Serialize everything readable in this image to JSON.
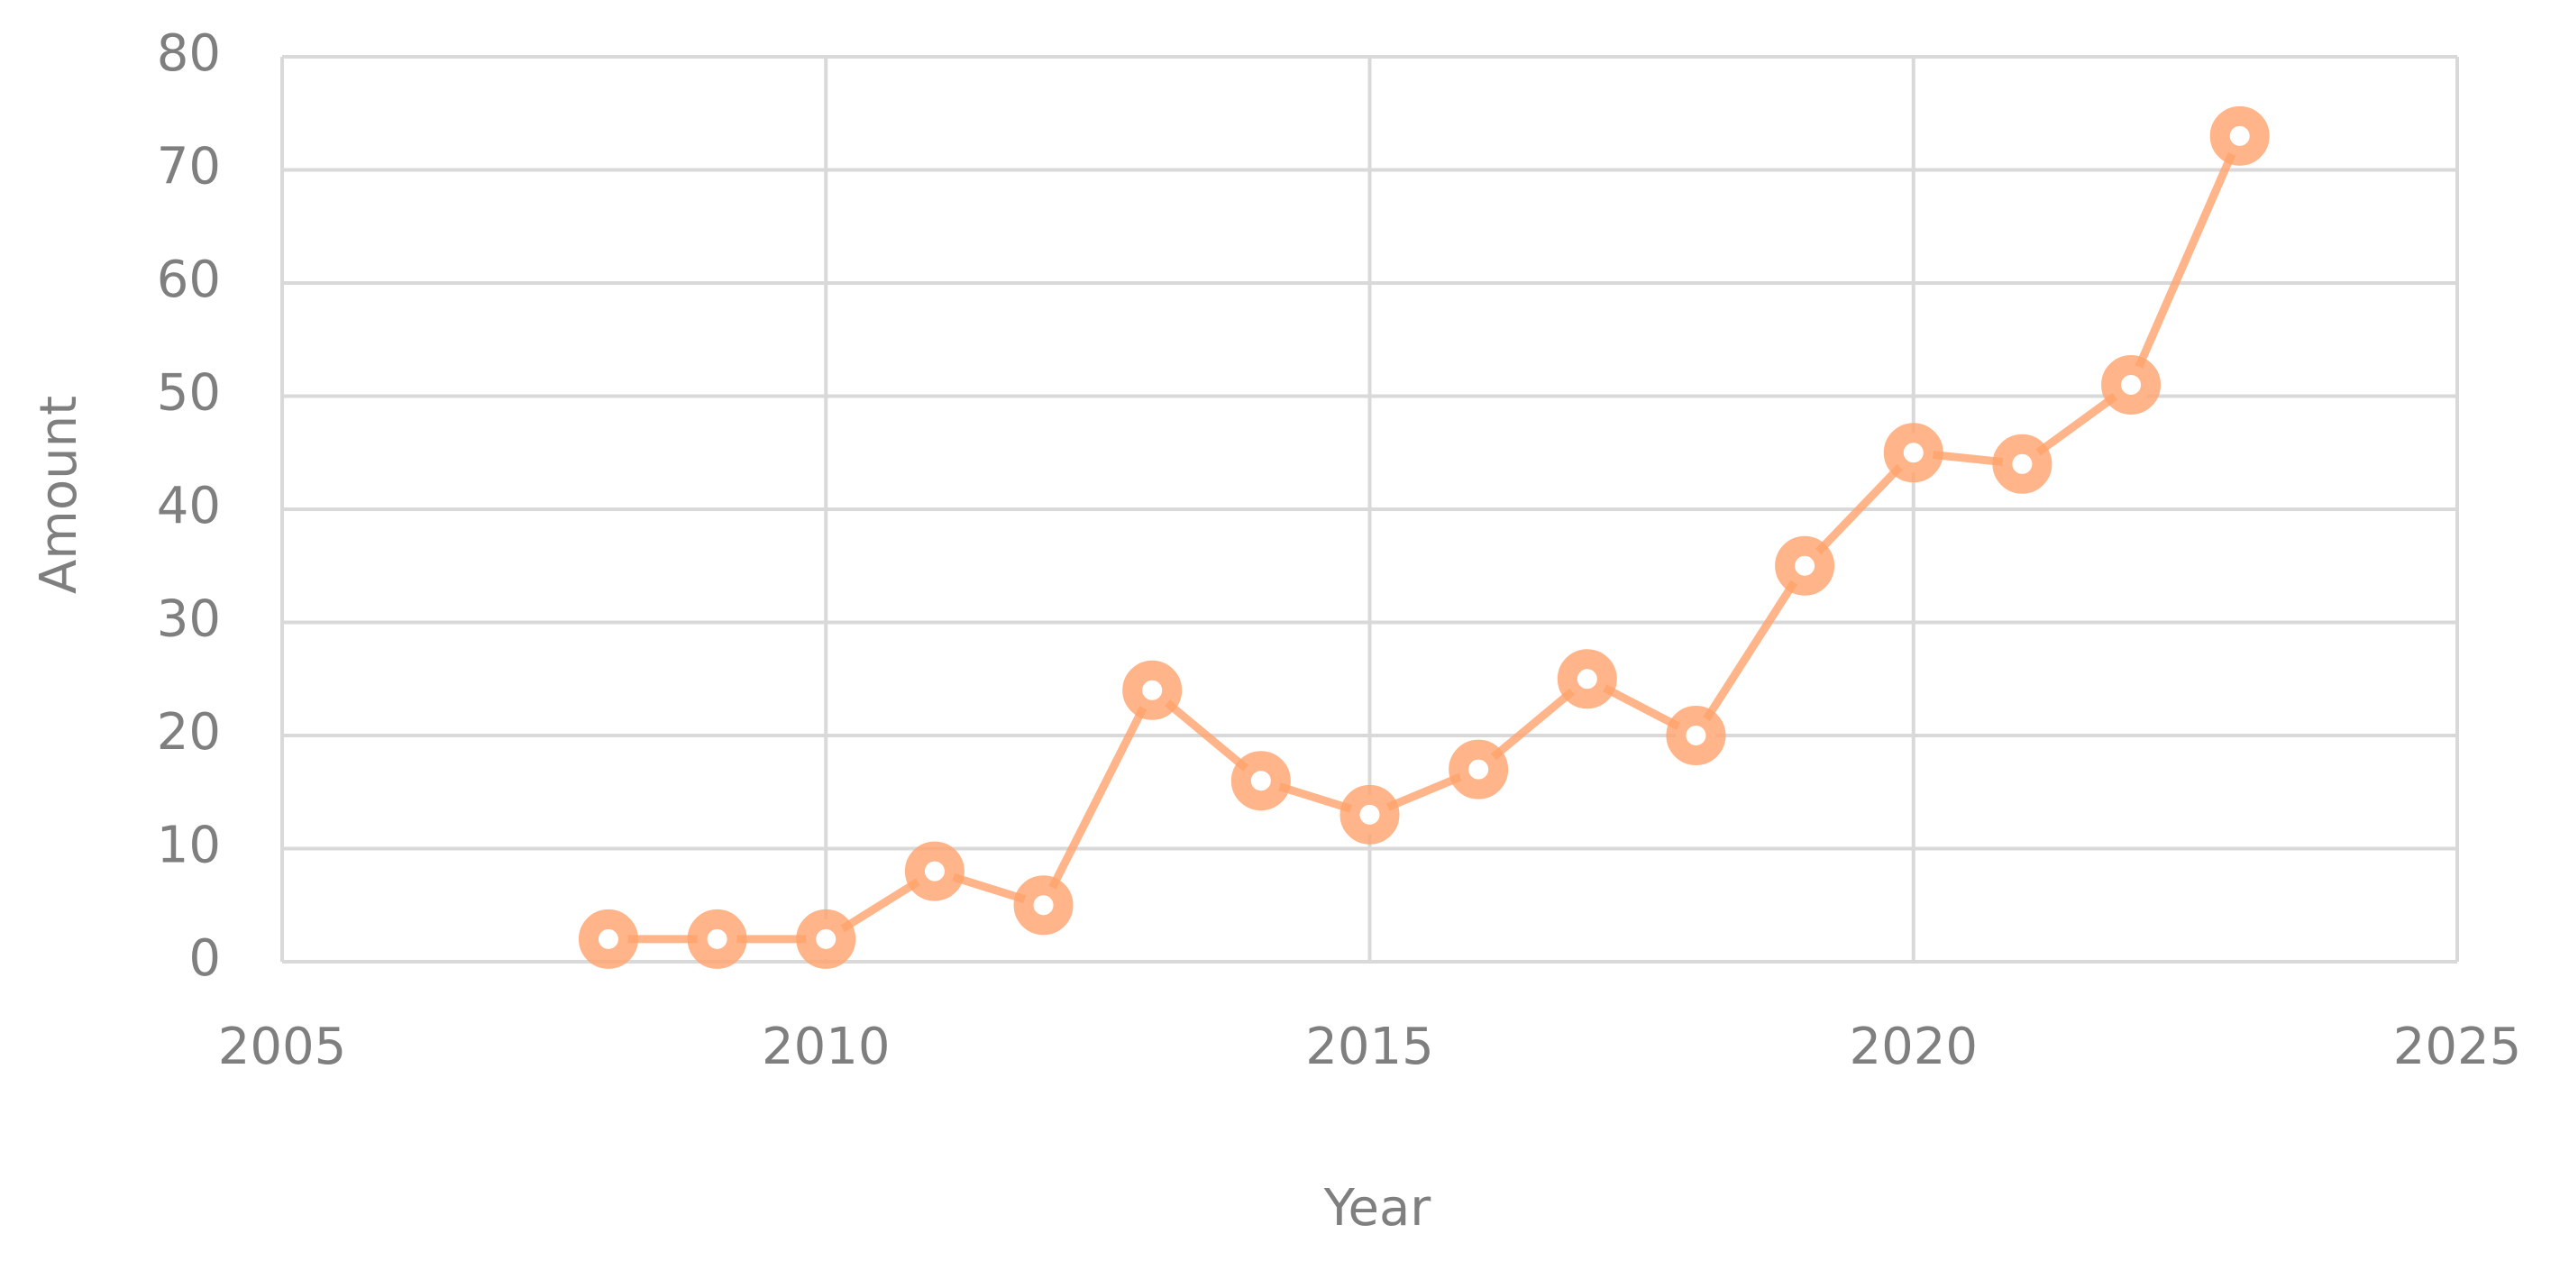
{
  "chart_data": {
    "type": "line",
    "x_label": "Year",
    "y_label": "Amount",
    "x": [
      2008,
      2009,
      2010,
      2011,
      2012,
      2013,
      2014,
      2015,
      2016,
      2017,
      2018,
      2019,
      2020,
      2021,
      2022,
      2023
    ],
    "values": [
      2,
      2,
      2,
      8,
      5,
      24,
      16,
      13,
      17,
      25,
      20,
      35,
      45,
      44,
      51,
      73
    ],
    "color": "#ffa36b",
    "xlim": [
      2005,
      2025
    ],
    "xticks": [
      2005,
      2010,
      2015,
      2020,
      2025
    ],
    "ylim": [
      0,
      80
    ],
    "yticks": [
      0,
      10,
      20,
      30,
      40,
      50,
      60,
      70,
      80
    ],
    "grid": true
  }
}
